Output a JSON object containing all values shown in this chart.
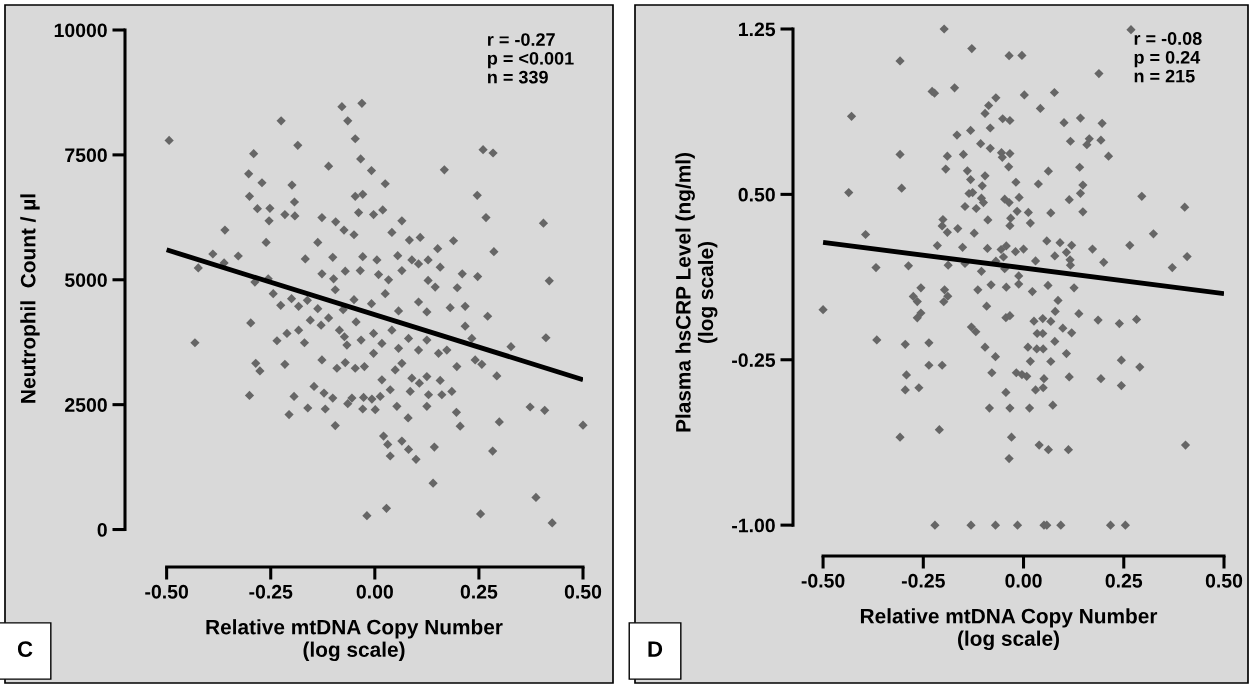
{
  "chart_data": [
    {
      "type": "scatter",
      "xlabel": "Relative mtDNA Copy Number\n(log scale)",
      "ylabel": "Neutrophil  Count / µl",
      "annotations": [
        "r = -0.27\np = <0.001\nn = 339",
        "C"
      ],
      "xlim": [
        -0.6,
        0.5
      ],
      "ylim": [
        -750,
        10000
      ],
      "xticks": [
        {
          "value": -0.5,
          "label": "-0.50"
        },
        {
          "value": -0.25,
          "label": "-0.25"
        },
        {
          "value": 0,
          "label": "0.00"
        },
        {
          "value": 0.25,
          "label": "0.25"
        },
        {
          "value": 0.5,
          "label": "0.50"
        }
      ],
      "yticks": [
        0,
        2500,
        5000,
        7500,
        10000
      ],
      "grid": false,
      "legend": false,
      "series": [
        {
          "marker": "diamond",
          "color": "#666666",
          "x": [
            -0.494,
            -0.031,
            -0.079,
            -0.065,
            -0.225,
            -0.047,
            -0.185,
            -0.291,
            0.26,
            0.284,
            -0.034,
            -0.111,
            -0.008,
            0.167,
            -0.303,
            -0.271,
            -0.199,
            0.246,
            -0.047,
            -0.029,
            0.025,
            -0.301,
            -0.282,
            -0.252,
            -0.193,
            -0.192,
            -0.216,
            -0.254,
            -0.039,
            -0.003,
            0.019,
            0.065,
            0.267,
            0.405,
            -0.127,
            -0.094,
            -0.36,
            -0.261,
            -0.137,
            -0.074,
            -0.05,
            0.041,
            0.083,
            0.109,
            0.189,
            -0.389,
            -0.328,
            -0.362,
            -0.424,
            -0.167,
            -0.101,
            -0.029,
            0.005,
            0.055,
            0.089,
            0.128,
            0.151,
            0.286,
            -0.127,
            -0.099,
            -0.071,
            -0.035,
            0.009,
            0.033,
            0.065,
            0.105,
            0.128,
            0.157,
            0.21,
            0.247,
            0.419,
            -0.288,
            -0.256,
            -0.244,
            -0.226,
            -0.2,
            -0.183,
            -0.162,
            -0.137,
            -0.095,
            -0.076,
            -0.05,
            -0.008,
            0.025,
            0.057,
            0.105,
            0.125,
            0.145,
            0.181,
            0.198,
            0.217,
            0.271,
            -0.298,
            -0.432,
            -0.235,
            -0.211,
            -0.183,
            -0.169,
            -0.155,
            -0.129,
            -0.111,
            -0.085,
            -0.073,
            -0.067,
            -0.045,
            -0.033,
            -0.003,
            0.017,
            0.041,
            0.057,
            0.081,
            0.105,
            0.125,
            0.153,
            0.173,
            0.233,
            0.327,
            0.411,
            0.217,
            -0.286,
            -0.276,
            -0.216,
            -0.127,
            -0.091,
            -0.071,
            -0.047,
            -0.025,
            -0.003,
            0.017,
            0.049,
            0.065,
            0.089,
            0.107,
            0.125,
            0.157,
            0.197,
            0.241,
            0.257,
            0.293,
            -0.301,
            -0.194,
            -0.146,
            -0.122,
            -0.101,
            -0.065,
            -0.055,
            -0.027,
            -0.007,
            0.013,
            0.037,
            0.085,
            0.129,
            0.161,
            0.185,
            -0.206,
            -0.161,
            -0.119,
            -0.029,
            0.001,
            0.053,
            0.08,
            0.125,
            0.196,
            0.205,
            0.299,
            0.373,
            0.408,
            0.5,
            -0.095,
            0.021,
            0.031,
            0.037,
            0.065,
            0.081,
            0.099,
            0.143,
            0.283,
            0.14,
            -0.019,
            0.028,
            0.254,
            0.387,
            0.426
          ],
          "values": [
            7790,
            8533,
            8466,
            8181,
            8181,
            7823,
            7691,
            7525,
            7605,
            7538,
            7419,
            7273,
            7187,
            7200,
            7121,
            6942,
            6895,
            6690,
            6670,
            6710,
            6922,
            6670,
            6424,
            6431,
            6557,
            6278,
            6305,
            6179,
            6345,
            6305,
            6398,
            6179,
            6245,
            6133,
            6245,
            6159,
            5994,
            5748,
            5748,
            5994,
            5901,
            5947,
            5795,
            5848,
            5781,
            5516,
            5476,
            5337,
            5238,
            5417,
            5450,
            5463,
            5397,
            5483,
            5397,
            5397,
            5622,
            5562,
            5118,
            5019,
            5171,
            5185,
            5105,
            4999,
            5185,
            5317,
            4986,
            5251,
            5118,
            5065,
            4979,
            4953,
            5019,
            4721,
            4489,
            4621,
            4469,
            4588,
            4422,
            4800,
            4402,
            4601,
            4522,
            4721,
            4376,
            4555,
            4356,
            4853,
            4442,
            4840,
            4469,
            4270,
            4137,
            3739,
            3779,
            3925,
            3991,
            3739,
            4190,
            4091,
            4237,
            3991,
            3859,
            3693,
            4157,
            3793,
            3925,
            3726,
            3991,
            3627,
            3826,
            3593,
            3793,
            3527,
            3593,
            3826,
            3660,
            3839,
            4071,
            3328,
            3176,
            3308,
            3395,
            3229,
            3342,
            3229,
            3262,
            3527,
            2997,
            3196,
            3328,
            3030,
            2930,
            3063,
            2984,
            3262,
            3395,
            3308,
            3076,
            2685,
            2665,
            2864,
            2732,
            2632,
            2519,
            2632,
            2645,
            2612,
            2665,
            2798,
            2765,
            2698,
            2698,
            2765,
            2301,
            2433,
            2413,
            2413,
            2400,
            2466,
            2234,
            2466,
            2347,
            2069,
            2155,
            2453,
            2387,
            2089,
            2082,
            1870,
            1704,
            1472,
            1770,
            1604,
            1406,
            1651,
            1571,
            928,
            278,
            424,
            312,
            643,
            133
          ]
        },
        {
          "type": "line",
          "color": "#000000",
          "x": [
            -0.5,
            0.5
          ],
          "values": [
            5600,
            3000
          ]
        }
      ]
    },
    {
      "type": "scatter",
      "xlabel": "Relative mtDNA Copy Number\n(log scale)",
      "ylabel": "Plasma hsCRP Level (ng/ml)\n(log scale)",
      "annotations": [
        "r = -0.08\np = 0.24\nn = 215",
        "D"
      ],
      "xlim": [
        -0.575,
        0.5
      ],
      "ylim": [
        -1.14,
        1.25
      ],
      "xticks": [
        {
          "value": -0.5,
          "label": "-0.50"
        },
        {
          "value": -0.25,
          "label": "-0.25"
        },
        {
          "value": 0,
          "label": "0.00"
        },
        {
          "value": 0.25,
          "label": "0.25"
        },
        {
          "value": 0.5,
          "label": "0.50"
        }
      ],
      "yticks": [
        {
          "value": -1.0,
          "label": "-1.00"
        },
        {
          "value": -0.25,
          "label": "-0.25"
        },
        {
          "value": 0.5,
          "label": "0.50"
        },
        {
          "value": 1.25,
          "label": "1.25"
        }
      ],
      "grid": false,
      "legend": false,
      "series": [
        {
          "marker": "diamond",
          "color": "#666666",
          "x": [
            -0.198,
            -0.129,
            -0.036,
            -0.004,
            -0.308,
            0.188,
            0.268,
            -0.172,
            -0.228,
            -0.222,
            0.002,
            0.077,
            -0.069,
            -0.087,
            -0.096,
            0.042,
            -0.429,
            -0.052,
            -0.034,
            0.142,
            0.101,
            0.196,
            -0.083,
            -0.132,
            -0.166,
            0.117,
            0.164,
            0.193,
            0.158,
            -0.107,
            -0.083,
            -0.308,
            -0.15,
            -0.19,
            -0.055,
            -0.053,
            -0.034,
            0.212,
            -0.194,
            -0.14,
            -0.037,
            0.062,
            0.14,
            -0.096,
            -0.132,
            -0.019,
            -0.103,
            0.037,
            0.148,
            -0.304,
            -0.436,
            -0.136,
            -0.127,
            0.142,
            0.295,
            -0.105,
            -0.047,
            -0.011,
            0.114,
            -0.1,
            -0.036,
            -0.146,
            -0.118,
            0.402,
            -0.016,
            0.012,
            0.148,
            0.068,
            -0.089,
            -0.201,
            -0.032,
            0.017,
            -0.203,
            -0.034,
            -0.164,
            -0.19,
            -0.123,
            -0.394,
            0.324,
            -0.215,
            -0.152,
            -0.09,
            -0.056,
            -0.043,
            -0.02,
            0.0,
            0.058,
            0.091,
            0.107,
            0.12,
            0.265,
            0.172,
            -0.069,
            -0.05,
            0.078,
            0.116,
            0.408,
            0.2,
            -0.368,
            -0.287,
            -0.188,
            -0.146,
            -0.105,
            -0.047,
            -0.012,
            0.03,
            0.117,
            0.371,
            0.061,
            -0.081,
            -0.043,
            -0.012,
            0.126,
            -0.256,
            -0.197,
            -0.114,
            0.022,
            -0.275,
            -0.189,
            -0.265,
            -0.199,
            0.086,
            -0.5,
            -0.092,
            -0.256,
            -0.265,
            0.079,
            0.138,
            -0.044,
            -0.034,
            0.026,
            0.048,
            0.068,
            0.186,
            0.239,
            0.282,
            -0.13,
            -0.119,
            0.034,
            0.048,
            0.098,
            0.12,
            -0.366,
            -0.295,
            -0.236,
            -0.096,
            0.011,
            0.033,
            0.049,
            0.078,
            0.107,
            -0.07,
            0.017,
            0.068,
            0.244,
            -0.236,
            -0.203,
            0.29,
            -0.292,
            -0.079,
            -0.018,
            -0.004,
            0.008,
            0.051,
            0.114,
            0.193,
            -0.295,
            -0.261,
            0.03,
            0.049,
            0.244,
            -0.044,
            0.073,
            -0.085,
            -0.034,
            0.015,
            -0.308,
            -0.21,
            -0.03,
            0.039,
            0.062,
            0.112,
            0.404,
            -0.036,
            -0.221,
            -0.131,
            -0.07,
            -0.015,
            0.051,
            0.058,
            0.093,
            0.217,
            0.254
          ],
          "values": [
            1.25,
            1.161,
            1.129,
            1.13,
            1.105,
            1.048,
            1.247,
            0.983,
            0.967,
            0.959,
            0.951,
            0.962,
            0.938,
            0.903,
            0.867,
            0.89,
            0.854,
            0.843,
            0.835,
            0.846,
            0.825,
            0.822,
            0.801,
            0.79,
            0.769,
            0.741,
            0.752,
            0.746,
            0.725,
            0.73,
            0.709,
            0.681,
            0.681,
            0.673,
            0.689,
            0.668,
            0.685,
            0.673,
            0.615,
            0.607,
            0.625,
            0.605,
            0.623,
            0.584,
            0.567,
            0.555,
            0.539,
            0.547,
            0.542,
            0.528,
            0.508,
            0.504,
            0.508,
            0.505,
            0.491,
            0.483,
            0.478,
            0.486,
            0.476,
            0.463,
            0.463,
            0.445,
            0.436,
            0.442,
            0.423,
            0.418,
            0.421,
            0.416,
            0.384,
            0.386,
            0.392,
            0.37,
            0.357,
            0.358,
            0.345,
            0.328,
            0.324,
            0.318,
            0.321,
            0.268,
            0.26,
            0.255,
            0.25,
            0.266,
            0.24,
            0.252,
            0.289,
            0.281,
            0.237,
            0.269,
            0.269,
            0.252,
            0.197,
            0.216,
            0.221,
            0.203,
            0.218,
            0.192,
            0.168,
            0.176,
            0.179,
            0.187,
            0.151,
            0.163,
            0.13,
            0.198,
            0.179,
            0.168,
            0.087,
            0.09,
            0.079,
            0.093,
            0.076,
            0.076,
            0.067,
            0.067,
            0.059,
            0.037,
            0.038,
            0.014,
            0.013,
            0.019,
            -0.023,
            -0.007,
            -0.038,
            -0.06,
            -0.031,
            -0.041,
            -0.059,
            -0.05,
            -0.075,
            -0.063,
            -0.076,
            -0.07,
            -0.086,
            -0.067,
            -0.102,
            -0.123,
            -0.131,
            -0.131,
            -0.107,
            -0.128,
            -0.16,
            -0.18,
            -0.173,
            -0.193,
            -0.193,
            -0.201,
            -0.201,
            -0.167,
            -0.222,
            -0.236,
            -0.257,
            -0.258,
            -0.252,
            -0.275,
            -0.275,
            -0.283,
            -0.319,
            -0.309,
            -0.309,
            -0.317,
            -0.325,
            -0.336,
            -0.328,
            -0.336,
            -0.387,
            -0.377,
            -0.387,
            -0.377,
            -0.367,
            -0.398,
            -0.456,
            -0.469,
            -0.469,
            -0.469,
            -0.601,
            -0.567,
            -0.601,
            -0.637,
            -0.658,
            -0.658,
            -0.637,
            -0.698,
            -1.0,
            -1.0,
            -1.0,
            -1.0,
            -1.0,
            -1.0,
            -1.0,
            -1.0,
            -1.0
          ]
        },
        {
          "type": "line",
          "color": "#000000",
          "x": [
            -0.5,
            0.5
          ],
          "values": [
            0.282,
            0.05
          ]
        }
      ]
    }
  ]
}
